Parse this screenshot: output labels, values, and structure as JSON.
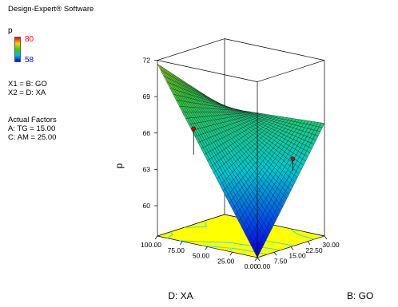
{
  "app": {
    "title": "Design-Expert® Software"
  },
  "legend": {
    "response": "p",
    "color_high": "80",
    "color_low": "58",
    "color_high_hex": "#ff0000",
    "color_low_hex": "#0000ff"
  },
  "factors": {
    "x1": "X1 = B: GO",
    "x2": "X2 = D: XA",
    "actual_heading": "Actual Factors",
    "actual_1": "A: TG = 15.00",
    "actual_2": "C: AM = 25.00"
  },
  "chart_data": {
    "type": "surface3d",
    "zlabel": "p",
    "xlabel": "B: GO",
    "ylabel": "D: XA",
    "x_ticks": [
      "0.00",
      "7.50",
      "15.00",
      "22.50",
      "30.00"
    ],
    "y_ticks": [
      "0.00",
      "25.00",
      "50.00",
      "75.00",
      "100.00"
    ],
    "z_ticks": [
      "60",
      "63",
      "66",
      "69",
      "72"
    ],
    "x_range": [
      0,
      30
    ],
    "y_range": [
      0,
      100
    ],
    "z_range": [
      57.5,
      72
    ],
    "surface_corners": {
      "x0_y0": 57.5,
      "x30_y0": 66.8,
      "x0_y100": 71.7,
      "x30_y100": 66.3
    },
    "design_points": [
      {
        "x": 5,
        "y": 75,
        "z": 66.5,
        "color": "#cc0000"
      },
      {
        "x": 27,
        "y": 25,
        "z": 63.6,
        "color": "#cc0000"
      }
    ],
    "floor_color": "#ffff00",
    "contour_color": "#44d8c8"
  }
}
